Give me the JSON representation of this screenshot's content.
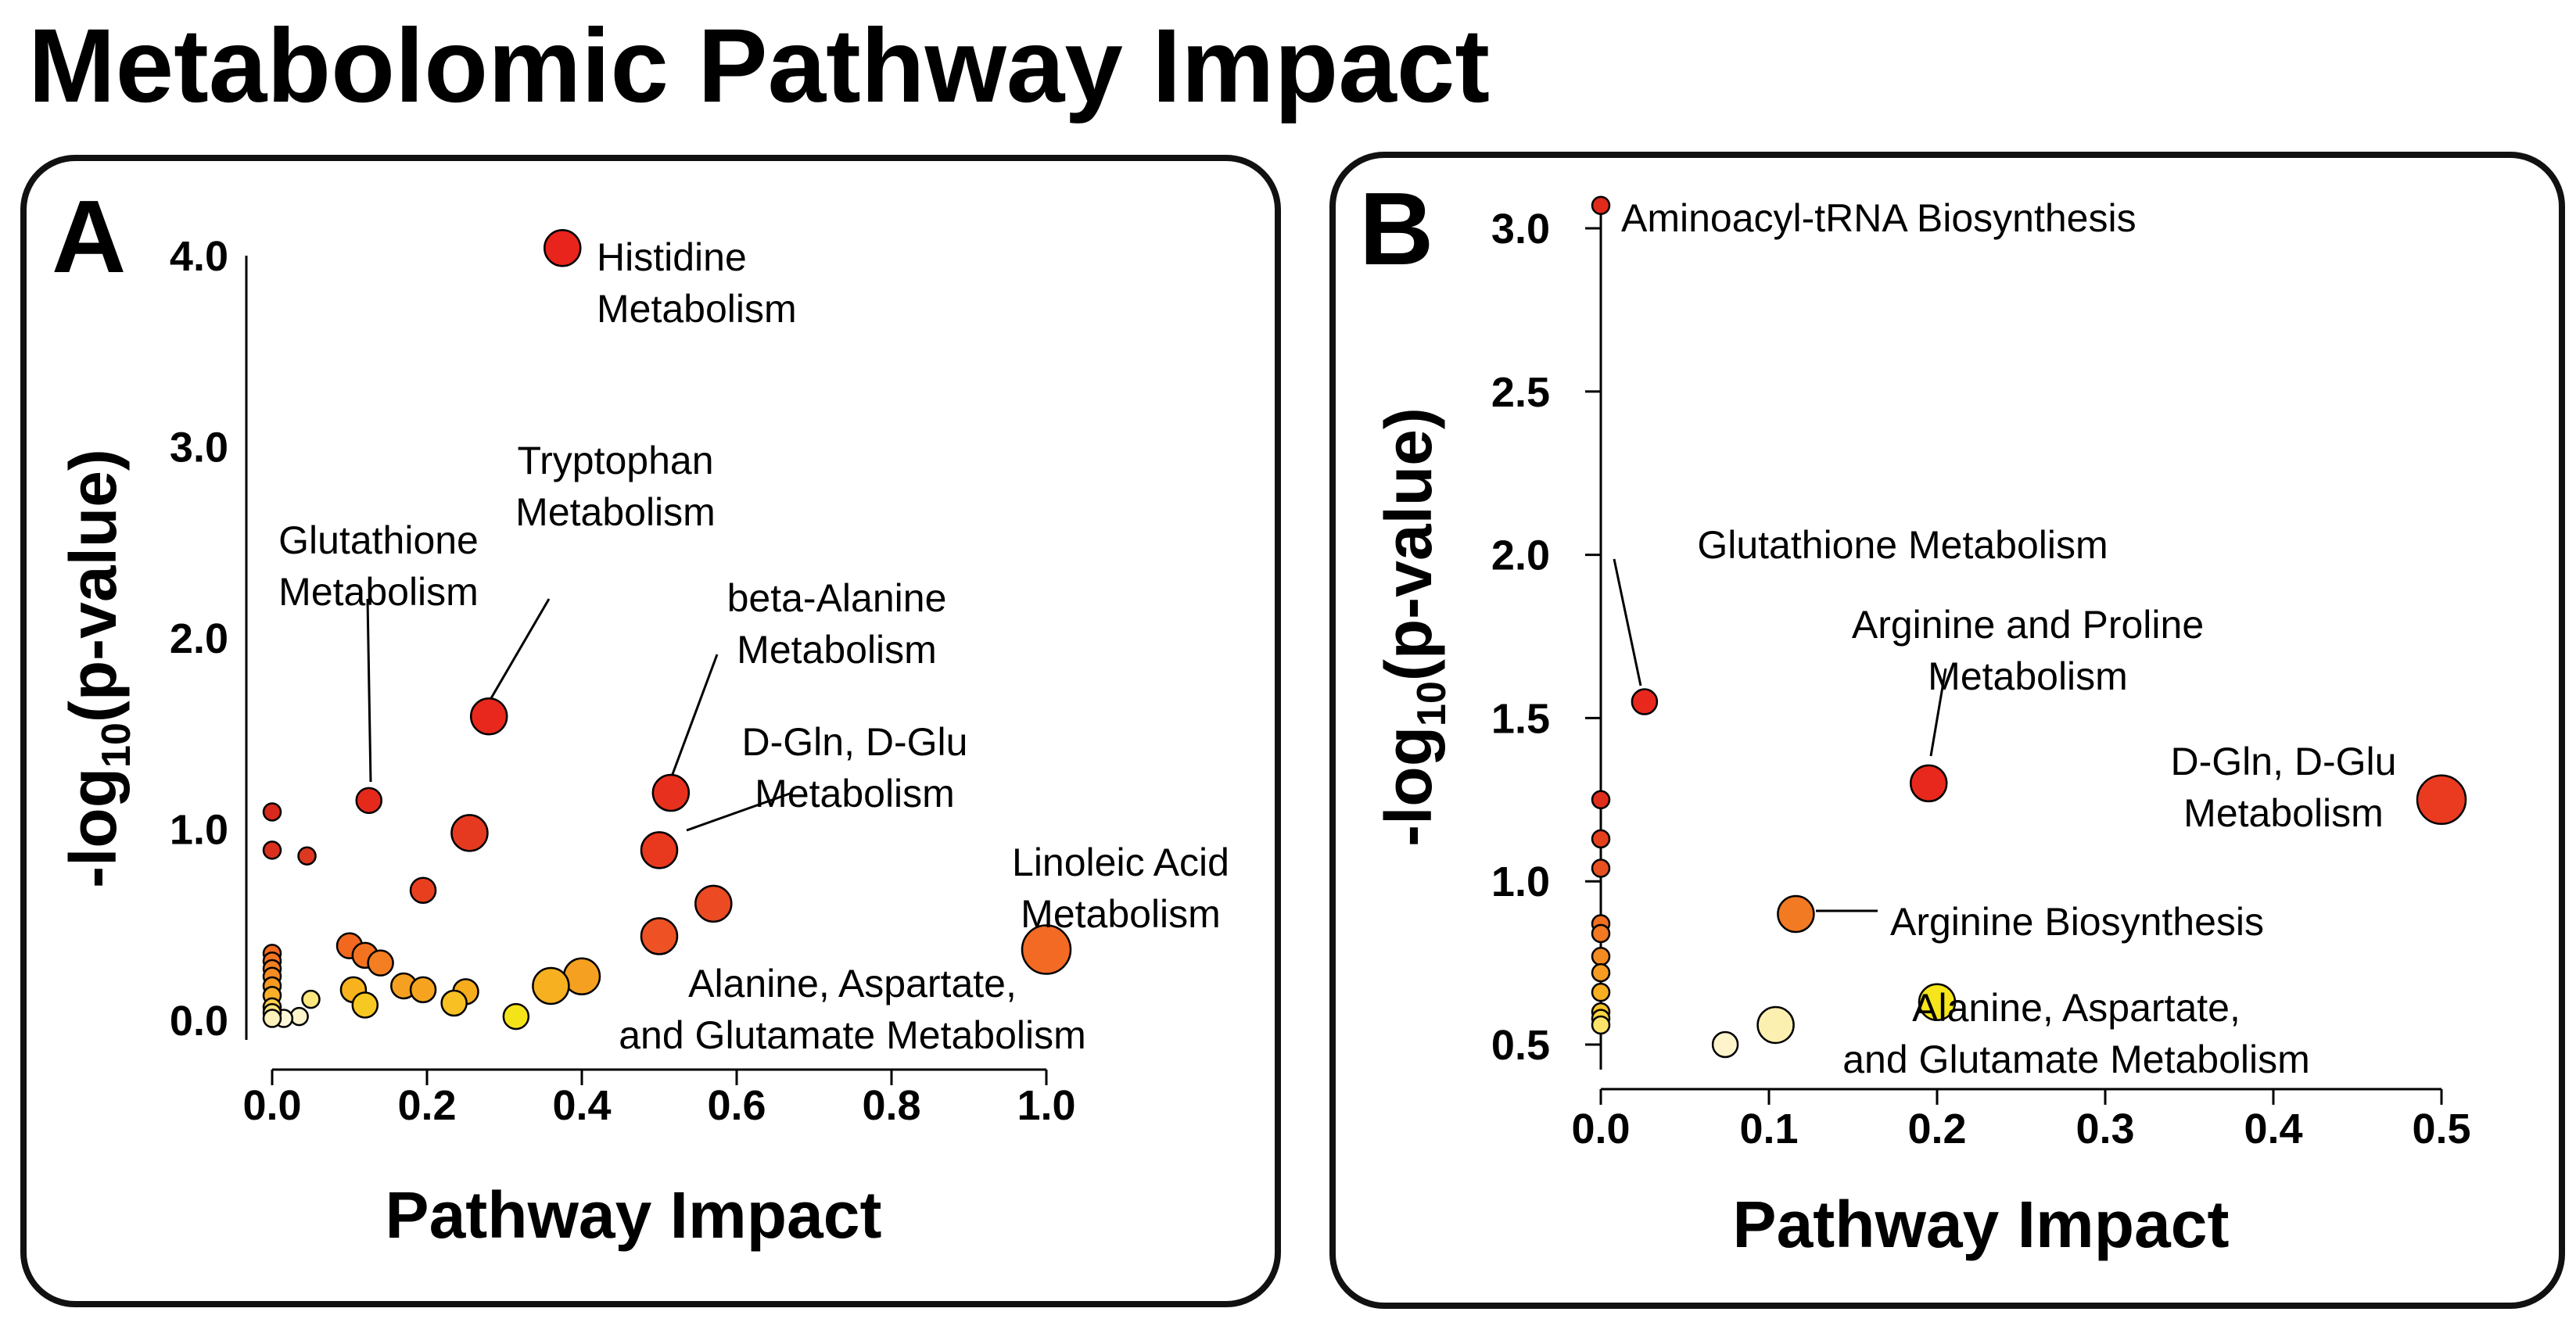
{
  "title": "Metabolomic Pathway Impact",
  "chart_data": [
    {
      "panel": "A",
      "type": "scatter",
      "xlabel": "Pathway Impact",
      "ylabel": "-log10(p-value)",
      "ylabel_parts": {
        "pre": "-log",
        "sub": "10",
        "post": "(p-value)"
      },
      "xlim": [
        0,
        1
      ],
      "ylim": [
        0,
        4
      ],
      "xticks": [
        "0.0",
        "0.2",
        "0.4",
        "0.6",
        "0.8",
        "1.0"
      ],
      "yticks": [
        "0.0",
        "1.0",
        "2.0",
        "3.0",
        "4.0"
      ],
      "points": [
        {
          "x": 0.375,
          "y": 4.04,
          "size": "medium",
          "color": "#e8241c"
        },
        {
          "x": 0.28,
          "y": 1.59,
          "size": "medium",
          "color": "#e8281c"
        },
        {
          "x": 0.125,
          "y": 1.15,
          "size": "small",
          "color": "#e52a1c"
        },
        {
          "x": 0.515,
          "y": 1.19,
          "size": "medium",
          "color": "#e8301e"
        },
        {
          "x": 0.5,
          "y": 0.89,
          "size": "medium",
          "color": "#e8381e"
        },
        {
          "x": 0.255,
          "y": 0.98,
          "size": "medium",
          "color": "#e63a20"
        },
        {
          "x": 0.195,
          "y": 0.68,
          "size": "small",
          "color": "#e8401e"
        },
        {
          "x": 0.57,
          "y": 0.61,
          "size": "medium",
          "color": "#eb4a22"
        },
        {
          "x": 0.5,
          "y": 0.44,
          "size": "medium",
          "color": "#ee5224"
        },
        {
          "x": 1.0,
          "y": 0.37,
          "size": "large",
          "color": "#f26a24"
        },
        {
          "x": 0.0,
          "y": 1.09,
          "size": "tiny",
          "color": "#d9281c"
        },
        {
          "x": 0.0,
          "y": 0.89,
          "size": "tiny",
          "color": "#db301e"
        },
        {
          "x": 0.045,
          "y": 0.86,
          "size": "tiny",
          "color": "#dd3820"
        },
        {
          "x": 0.1,
          "y": 0.39,
          "size": "small",
          "color": "#f2681e"
        },
        {
          "x": 0.12,
          "y": 0.34,
          "size": "small",
          "color": "#f37220"
        },
        {
          "x": 0.14,
          "y": 0.3,
          "size": "small",
          "color": "#f47e22"
        },
        {
          "x": 0.4,
          "y": 0.23,
          "size": "medium",
          "color": "#f5a020"
        },
        {
          "x": 0.36,
          "y": 0.18,
          "size": "medium",
          "color": "#f7b01f"
        },
        {
          "x": 0.17,
          "y": 0.18,
          "size": "small",
          "color": "#f5a020"
        },
        {
          "x": 0.195,
          "y": 0.16,
          "size": "small",
          "color": "#f6a420"
        },
        {
          "x": 0.25,
          "y": 0.15,
          "size": "small",
          "color": "#f7ac1e"
        },
        {
          "x": 0.105,
          "y": 0.16,
          "size": "small",
          "color": "#f7b21e"
        },
        {
          "x": 0.235,
          "y": 0.09,
          "size": "small",
          "color": "#f8c022"
        },
        {
          "x": 0.12,
          "y": 0.08,
          "size": "small",
          "color": "#f8c822"
        },
        {
          "x": 0.315,
          "y": 0.02,
          "size": "small",
          "color": "#f5e31a"
        },
        {
          "x": 0.05,
          "y": 0.11,
          "size": "tiny",
          "color": "#fbe680"
        },
        {
          "x": 0.035,
          "y": 0.02,
          "size": "tiny",
          "color": "#fdf4cc"
        },
        {
          "x": 0.015,
          "y": 0.01,
          "size": "tiny",
          "color": "#fef8d8"
        },
        {
          "x": 0.0,
          "y": 0.35,
          "size": "tiny",
          "color": "#f26a20"
        },
        {
          "x": 0.0,
          "y": 0.31,
          "size": "tiny",
          "color": "#f37422"
        },
        {
          "x": 0.0,
          "y": 0.27,
          "size": "tiny",
          "color": "#f48022"
        },
        {
          "x": 0.0,
          "y": 0.23,
          "size": "tiny",
          "color": "#f58c22"
        },
        {
          "x": 0.0,
          "y": 0.18,
          "size": "tiny",
          "color": "#f69a22"
        },
        {
          "x": 0.0,
          "y": 0.13,
          "size": "tiny",
          "color": "#f8b02a"
        },
        {
          "x": 0.0,
          "y": 0.07,
          "size": "tiny",
          "color": "#facd4a"
        },
        {
          "x": 0.0,
          "y": 0.04,
          "size": "tiny",
          "color": "#fbe27a"
        },
        {
          "x": 0.0,
          "y": 0.01,
          "size": "tiny",
          "color": "#fdf0b8"
        }
      ],
      "annotations": [
        {
          "lines": [
            "Histidine",
            "Metabolism"
          ],
          "align": "start",
          "leader": false
        },
        {
          "lines": [
            "Tryptophan",
            "Metabolism"
          ],
          "align": "middle",
          "leader": true
        },
        {
          "lines": [
            "Glutathione",
            "Metabolism"
          ],
          "align": "middle",
          "leader": true
        },
        {
          "lines": [
            "beta-Alanine",
            "Metabolism"
          ],
          "align": "middle",
          "leader": true
        },
        {
          "lines": [
            "D-Gln, D-Glu",
            "Metabolism"
          ],
          "align": "middle",
          "leader": true
        },
        {
          "lines": [
            "Linoleic Acid",
            "Metabolism"
          ],
          "align": "middle",
          "leader": false
        },
        {
          "lines": [
            "Alanine, Aspartate,",
            "and Glutamate Metabolism"
          ],
          "align": "middle",
          "leader": false
        }
      ]
    },
    {
      "panel": "B",
      "type": "scatter",
      "xlabel": "Pathway Impact",
      "ylabel": "-log10(p-value)",
      "ylabel_parts": {
        "pre": "-log",
        "sub": "10",
        "post": "(p-value)"
      },
      "xlim": [
        0,
        0.5
      ],
      "ylim": [
        0.5,
        3.0
      ],
      "xticks": [
        "0.0",
        "0.1",
        "0.2",
        "0.3",
        "0.4",
        "0.5"
      ],
      "yticks": [
        "0.5",
        "1.0",
        "1.5",
        "2.0",
        "2.5",
        "3.0"
      ],
      "points": [
        {
          "x": 0.0,
          "y": 3.07,
          "size": "tiny",
          "color": "#e02a1c"
        },
        {
          "x": 0.026,
          "y": 1.55,
          "size": "small",
          "color": "#e8281c"
        },
        {
          "x": 0.195,
          "y": 1.3,
          "size": "medium",
          "color": "#e8281c"
        },
        {
          "x": 0.5,
          "y": 1.25,
          "size": "large",
          "color": "#ea3a20"
        },
        {
          "x": 0.116,
          "y": 0.9,
          "size": "medium",
          "color": "#f27a22"
        },
        {
          "x": 0.2,
          "y": 0.63,
          "size": "medium",
          "color": "#f5e51a"
        },
        {
          "x": 0.104,
          "y": 0.56,
          "size": "medium",
          "color": "#fbf0b0"
        },
        {
          "x": 0.074,
          "y": 0.5,
          "size": "small",
          "color": "#fdf4cc"
        },
        {
          "x": 0.0,
          "y": 1.25,
          "size": "tiny",
          "color": "#e02e1c"
        },
        {
          "x": 0.0,
          "y": 1.13,
          "size": "tiny",
          "color": "#e4401e"
        },
        {
          "x": 0.0,
          "y": 1.04,
          "size": "tiny",
          "color": "#e85020"
        },
        {
          "x": 0.0,
          "y": 0.87,
          "size": "tiny",
          "color": "#f07022"
        },
        {
          "x": 0.0,
          "y": 0.84,
          "size": "tiny",
          "color": "#f27822"
        },
        {
          "x": 0.0,
          "y": 0.77,
          "size": "tiny",
          "color": "#f48a22"
        },
        {
          "x": 0.0,
          "y": 0.72,
          "size": "tiny",
          "color": "#f69c22"
        },
        {
          "x": 0.0,
          "y": 0.66,
          "size": "tiny",
          "color": "#f8b022"
        },
        {
          "x": 0.0,
          "y": 0.6,
          "size": "tiny",
          "color": "#f9c22a"
        },
        {
          "x": 0.0,
          "y": 0.58,
          "size": "tiny",
          "color": "#fbd640"
        },
        {
          "x": 0.0,
          "y": 0.56,
          "size": "tiny",
          "color": "#fce46a"
        }
      ],
      "annotations": [
        {
          "lines": [
            "Aminoacyl-tRNA Biosynthesis"
          ],
          "align": "start",
          "leader": false
        },
        {
          "lines": [
            "Glutathione Metabolism"
          ],
          "align": "middle",
          "leader": true
        },
        {
          "lines": [
            "Arginine and Proline",
            "Metabolism"
          ],
          "align": "middle",
          "leader": true
        },
        {
          "lines": [
            "D-Gln, D-Glu",
            "Metabolism"
          ],
          "align": "middle",
          "leader": false
        },
        {
          "lines": [
            "Arginine Biosynthesis"
          ],
          "align": "start",
          "leader": true
        },
        {
          "lines": [
            "Alanine, Aspartate,",
            "and Glutamate Metabolism"
          ],
          "align": "middle",
          "leader": false
        }
      ]
    }
  ]
}
